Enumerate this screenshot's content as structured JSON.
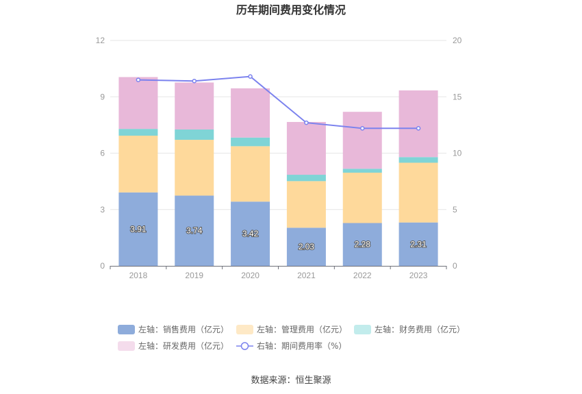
{
  "chart_data": {
    "type": "bar",
    "title": "历年期间费用变化情况",
    "categories": [
      "2018",
      "2019",
      "2020",
      "2021",
      "2022",
      "2023"
    ],
    "left_axis": {
      "min": 0,
      "max": 12,
      "ticks": [
        "0",
        "3",
        "6",
        "9",
        "12"
      ]
    },
    "right_axis": {
      "min": 0,
      "max": 20,
      "ticks": [
        "0",
        "5",
        "10",
        "15",
        "20"
      ]
    },
    "series": [
      {
        "name": "左轴：销售费用（亿元）",
        "axis": "left",
        "type": "bar",
        "color": "#8eacdb",
        "values": [
          3.91,
          3.74,
          3.42,
          2.03,
          2.28,
          2.31
        ],
        "labels": [
          "3.91",
          "3.74",
          "3.42",
          "2.03",
          "2.28",
          "2.31"
        ]
      },
      {
        "name": "左轴：管理费用（亿元）",
        "axis": "left",
        "type": "bar",
        "color": "#fed99b",
        "values": [
          3.02,
          2.97,
          2.95,
          2.48,
          2.68,
          3.18
        ]
      },
      {
        "name": "左轴：财务费用（亿元）",
        "axis": "left",
        "type": "bar",
        "color": "#7fd4d6",
        "values": [
          0.36,
          0.55,
          0.46,
          0.34,
          0.21,
          0.3
        ]
      },
      {
        "name": "左轴：研发费用（亿元）",
        "axis": "left",
        "type": "bar",
        "color": "#e8b8d9",
        "values": [
          2.76,
          2.5,
          2.62,
          2.81,
          3.03,
          3.55
        ]
      },
      {
        "name": "右轴：期间费用率（%）",
        "axis": "right",
        "type": "line",
        "color": "#7b82ee",
        "values": [
          16.5,
          16.4,
          16.8,
          12.7,
          12.2,
          12.2
        ]
      }
    ],
    "legend_position": "bottom",
    "grid": true
  },
  "source": "数据来源：恒生聚源"
}
